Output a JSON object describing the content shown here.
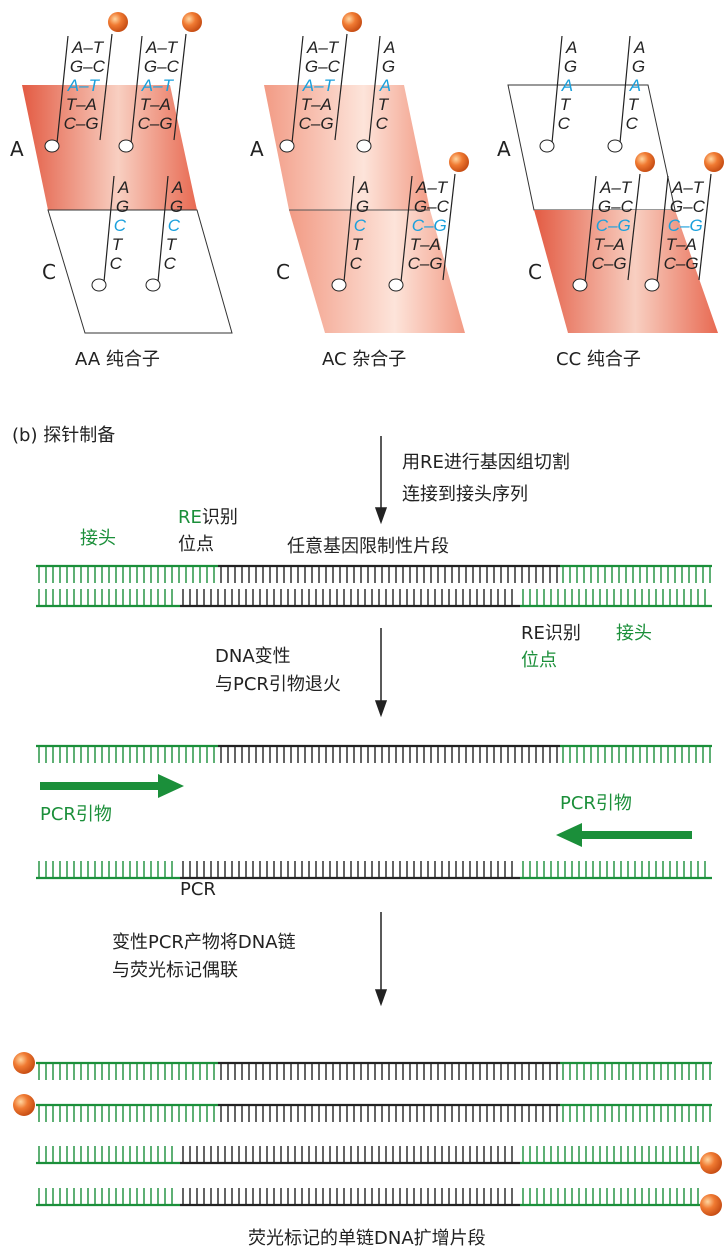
{
  "panel_a": {
    "row_a": "A",
    "row_c": "C",
    "panels": [
      {
        "caption": "AA 纯合子"
      },
      {
        "caption": "AC 杂合子"
      },
      {
        "caption": "CC 纯合子"
      }
    ],
    "bases": {
      "full": [
        [
          "A",
          "T"
        ],
        [
          "G",
          "C"
        ],
        [
          "A",
          "T"
        ],
        [
          "T",
          "A"
        ],
        [
          "C",
          "G"
        ]
      ],
      "full_c": [
        [
          "A",
          "T"
        ],
        [
          "G",
          "C"
        ],
        [
          "C",
          "G"
        ],
        [
          "T",
          "A"
        ],
        [
          "C",
          "G"
        ]
      ],
      "single_a": [
        "A",
        "G",
        "A",
        "T",
        "C"
      ],
      "single_c": [
        "A",
        "G",
        "C",
        "T",
        "C"
      ],
      "dash": "–"
    }
  },
  "panel_b": {
    "title": "(b) 探针制备",
    "step1": [
      "用RE进行基因组切割",
      "连接到接头序列"
    ],
    "adapter_left": "接头",
    "re_site_left_1": "RE",
    "re_site_left_1b": "识别",
    "re_site_left_2": "位点",
    "fragment": "任意基因限制性片段",
    "re_site_right_1": "RE识别",
    "re_site_right_2": "位点",
    "adapter_right": "接头",
    "step2": [
      "DNA变性",
      "与PCR引物退火"
    ],
    "primer_left": "PCR引物",
    "primer_right": "PCR引物",
    "pcr": "PCR",
    "step3": [
      "变性PCR产物将DNA链",
      "与荧光标记偶联"
    ],
    "result": "荧光标记的单链DNA扩增片段"
  },
  "colors": {
    "green": "#1b8f3a",
    "black": "#222222",
    "blue": "#1aa0dc",
    "orange": "#e8622a",
    "salmon": "#e8604a"
  }
}
